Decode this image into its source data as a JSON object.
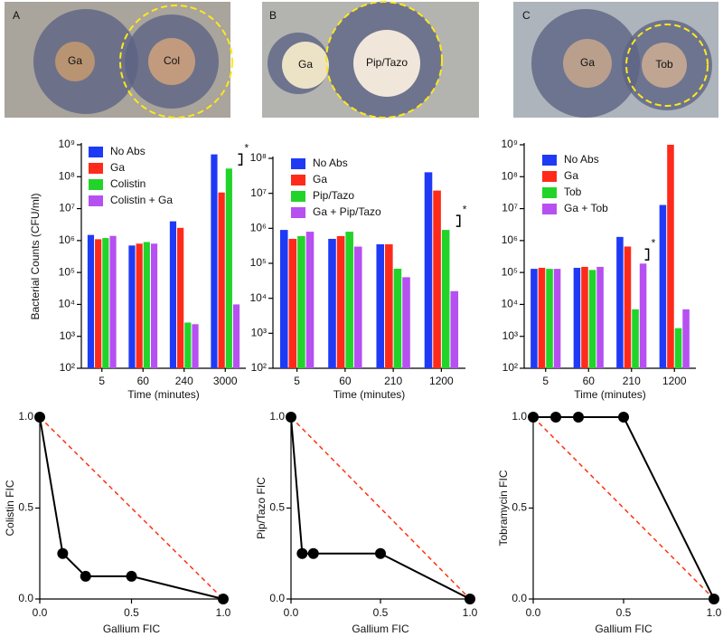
{
  "photos": [
    {
      "panel": "A",
      "discs": [
        "Ga",
        "Col"
      ]
    },
    {
      "panel": "B",
      "discs": [
        "Ga",
        "Pip/Tazo"
      ]
    },
    {
      "panel": "C",
      "discs": [
        "Ga",
        "Tob"
      ]
    }
  ],
  "chart_data": [
    {
      "type": "bar",
      "log_y": true,
      "x_label": "Time (minutes)",
      "y_label": "Bacterial Counts (CFU/ml)",
      "annotation": "*",
      "categories": [
        "5",
        "60",
        "240",
        "3000"
      ],
      "series": [
        {
          "name": "No Abs",
          "color": "#1f3af5",
          "values": [
            1500000,
            700000,
            4000000,
            500000000
          ]
        },
        {
          "name": "Ga",
          "color": "#ff2a1a",
          "values": [
            1100000,
            800000,
            2500000,
            32000000
          ]
        },
        {
          "name": "Colistin",
          "color": "#22d42a",
          "values": [
            1200000,
            900000,
            2700,
            180000000
          ]
        },
        {
          "name": "Colistin + Ga",
          "color": "#b650f0",
          "values": [
            1400000,
            800000,
            2400,
            10000
          ]
        }
      ],
      "ylim": [
        100,
        1000000000
      ],
      "yticks": [
        {
          "value": 100,
          "label": "10²"
        },
        {
          "value": 1000,
          "label": "10³"
        },
        {
          "value": 10000,
          "label": "10⁴"
        },
        {
          "value": 100000,
          "label": "10⁵"
        },
        {
          "value": 1000000,
          "label": "10⁶"
        },
        {
          "value": 10000000,
          "label": "10⁷"
        },
        {
          "value": 100000000,
          "label": "10⁸"
        },
        {
          "value": 1000000000,
          "label": "10⁹"
        }
      ]
    },
    {
      "type": "bar",
      "log_y": true,
      "x_label": "Time (minutes)",
      "annotation": "*",
      "categories": [
        "5",
        "60",
        "210",
        "1200"
      ],
      "series": [
        {
          "name": "No Abs",
          "color": "#1f3af5",
          "values": [
            900000,
            500000,
            350000,
            40000000
          ]
        },
        {
          "name": "Ga",
          "color": "#ff2a1a",
          "values": [
            500000,
            600000,
            350000,
            12000000
          ]
        },
        {
          "name": "Pip/Tazo",
          "color": "#22d42a",
          "values": [
            600000,
            800000,
            70000,
            900000
          ]
        },
        {
          "name": "Ga + Pip/Tazo",
          "color": "#b650f0",
          "values": [
            800000,
            300000,
            40000,
            16000
          ]
        }
      ],
      "ylim": [
        100,
        100000000
      ],
      "yticks": [
        {
          "value": 100,
          "label": "10²"
        },
        {
          "value": 1000,
          "label": "10³"
        },
        {
          "value": 10000,
          "label": "10⁴"
        },
        {
          "value": 100000,
          "label": "10⁵"
        },
        {
          "value": 1000000,
          "label": "10⁶"
        },
        {
          "value": 10000000,
          "label": "10⁷"
        },
        {
          "value": 100000000,
          "label": "10⁸"
        }
      ]
    },
    {
      "type": "bar",
      "log_y": true,
      "x_label": "Time (minutes)",
      "annotation": "*",
      "categories": [
        "5",
        "60",
        "210",
        "1200"
      ],
      "series": [
        {
          "name": "No Abs",
          "color": "#1f3af5",
          "values": [
            130000,
            140000,
            1300000,
            13000000
          ]
        },
        {
          "name": "Ga",
          "color": "#ff2a1a",
          "values": [
            140000,
            150000,
            650000,
            1000000000
          ]
        },
        {
          "name": "Tob",
          "color": "#22d42a",
          "values": [
            130000,
            120000,
            7000,
            1800
          ]
        },
        {
          "name": "Ga + Tob",
          "color": "#b650f0",
          "values": [
            130000,
            150000,
            190000,
            7000
          ]
        }
      ],
      "ylim": [
        100,
        1000000000
      ],
      "yticks": [
        {
          "value": 100,
          "label": "10²"
        },
        {
          "value": 1000,
          "label": "10³"
        },
        {
          "value": 10000,
          "label": "10⁴"
        },
        {
          "value": 100000,
          "label": "10⁵"
        },
        {
          "value": 1000000,
          "label": "10⁶"
        },
        {
          "value": 10000000,
          "label": "10⁷"
        },
        {
          "value": 100000000,
          "label": "10⁸"
        },
        {
          "value": 1000000000,
          "label": "10⁹"
        }
      ]
    },
    {
      "type": "line",
      "x_label": "Gallium FIC",
      "y_label": "Colistin FIC",
      "diagonal_color": "#ff3010",
      "color": "#000000",
      "x": [
        0,
        0.125,
        0.25,
        0.5,
        1
      ],
      "values": [
        1,
        0.25,
        0.125,
        0.125,
        0
      ],
      "xlim": [
        0,
        1
      ],
      "ylim": [
        0,
        1
      ],
      "xticks": [
        {
          "value": 0,
          "label": "0.0"
        },
        {
          "value": 0.5,
          "label": "0.5"
        },
        {
          "value": 1,
          "label": "1.0"
        }
      ],
      "yticks": [
        {
          "value": 0,
          "label": "0.0"
        },
        {
          "value": 0.5,
          "label": "0.5"
        },
        {
          "value": 1,
          "label": "1.0"
        }
      ]
    },
    {
      "type": "line",
      "x_label": "Gallium FIC",
      "y_label": "Pip/Tazo FIC",
      "diagonal_color": "#ff3010",
      "color": "#000000",
      "x": [
        0,
        0.0625,
        0.125,
        0.5,
        1
      ],
      "values": [
        1,
        0.25,
        0.25,
        0.25,
        0
      ],
      "xlim": [
        0,
        1
      ],
      "ylim": [
        0,
        1
      ],
      "xticks": [
        {
          "value": 0,
          "label": "0.0"
        },
        {
          "value": 0.5,
          "label": "0.5"
        },
        {
          "value": 1,
          "label": "1.0"
        }
      ],
      "yticks": [
        {
          "value": 0,
          "label": "0.0"
        },
        {
          "value": 0.5,
          "label": "0.5"
        },
        {
          "value": 1,
          "label": "1.0"
        }
      ]
    },
    {
      "type": "line",
      "x_label": "Gallium FIC",
      "y_label": "Tobramycin FIC",
      "diagonal_color": "#ff3010",
      "color": "#000000",
      "x": [
        0,
        0.125,
        0.25,
        0.5,
        1
      ],
      "values": [
        1,
        1,
        1,
        1,
        0
      ],
      "xlim": [
        0,
        1
      ],
      "ylim": [
        0,
        1
      ],
      "xticks": [
        {
          "value": 0,
          "label": "0.0"
        },
        {
          "value": 0.5,
          "label": "0.5"
        },
        {
          "value": 1,
          "label": "1.0"
        }
      ],
      "yticks": [
        {
          "value": 0,
          "label": "0.0"
        },
        {
          "value": 0.5,
          "label": "0.5"
        },
        {
          "value": 1,
          "label": "1.0"
        }
      ]
    }
  ]
}
